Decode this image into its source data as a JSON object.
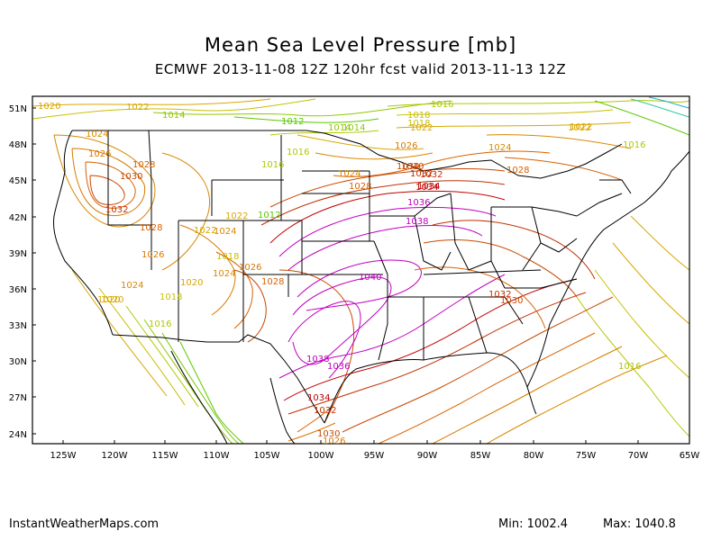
{
  "title": "Mean Sea Level Pressure [mb]",
  "subtitle": "ECMWF 2013-11-08 12Z 120hr fcst valid 2013-11-13 12Z",
  "lat_labels": [
    "51N",
    "48N",
    "45N",
    "42N",
    "39N",
    "36N",
    "33N",
    "30N",
    "27N",
    "24N"
  ],
  "lon_labels": [
    "125W",
    "120W",
    "115W",
    "110W",
    "105W",
    "100W",
    "95W",
    "90W",
    "85W",
    "80W",
    "75W",
    "70W",
    "65W"
  ],
  "footer": {
    "site": "InstantWeatherMaps.com",
    "min": "Min: 1002.4",
    "max": "Max: 1040.8"
  },
  "contour_labels": [
    {
      "text": "1020",
      "color": "#d8a800"
    },
    {
      "text": "1022",
      "color": "#d8a800"
    },
    {
      "text": "1014",
      "color": "#90c800"
    },
    {
      "text": "1012",
      "color": "#58c800"
    },
    {
      "text": "1014",
      "color": "#90c800"
    },
    {
      "text": "1018",
      "color": "#c8c000"
    },
    {
      "text": "1018",
      "color": "#c8c000"
    },
    {
      "text": "1022",
      "color": "#d8a800"
    },
    {
      "text": "1016",
      "color": "#b0c800"
    },
    {
      "text": "1016",
      "color": "#b0c800"
    },
    {
      "text": "1022",
      "color": "#d8a800"
    },
    {
      "text": "1024",
      "color": "#d88800"
    },
    {
      "text": "1026",
      "color": "#d87800"
    },
    {
      "text": "1028",
      "color": "#d86000"
    },
    {
      "text": "1030",
      "color": "#c84800"
    },
    {
      "text": "1032",
      "color": "#c03000"
    },
    {
      "text": "1028",
      "color": "#d86000"
    },
    {
      "text": "1026",
      "color": "#d87800"
    },
    {
      "text": "1024",
      "color": "#d88800"
    },
    {
      "text": "1020",
      "color": "#d8a800"
    },
    {
      "text": "1018",
      "color": "#c8c000"
    },
    {
      "text": "1016",
      "color": "#b0c800"
    },
    {
      "text": "1020",
      "color": "#d8a800"
    },
    {
      "text": "1018",
      "color": "#c8c000"
    },
    {
      "text": "1022",
      "color": "#d8a800"
    },
    {
      "text": "1024",
      "color": "#d88800"
    },
    {
      "text": "1024",
      "color": "#d88800"
    },
    {
      "text": "1026",
      "color": "#d87800"
    },
    {
      "text": "1028",
      "color": "#d86000"
    },
    {
      "text": "1022",
      "color": "#d8a800"
    },
    {
      "text": "1016",
      "color": "#b0c800"
    },
    {
      "text": "1014",
      "color": "#90c800"
    },
    {
      "text": "1012",
      "color": "#58c800"
    },
    {
      "text": "1030",
      "color": "#c84800"
    },
    {
      "text": "1034",
      "color": "#c00000"
    },
    {
      "text": "1032",
      "color": "#c03000"
    },
    {
      "text": "1024",
      "color": "#d88800"
    },
    {
      "text": "1028",
      "color": "#d86000"
    },
    {
      "text": "1026",
      "color": "#d87800"
    },
    {
      "text": "1030",
      "color": "#c84800"
    },
    {
      "text": "1032",
      "color": "#c03000"
    },
    {
      "text": "1034",
      "color": "#c00000"
    },
    {
      "text": "1036",
      "color": "#c000c0"
    },
    {
      "text": "1038",
      "color": "#c000c0"
    },
    {
      "text": "1024",
      "color": "#d88800"
    },
    {
      "text": "1028",
      "color": "#d86000"
    },
    {
      "text": "1022",
      "color": "#d8a800"
    },
    {
      "text": "1016",
      "color": "#b0c800"
    },
    {
      "text": "1040",
      "color": "#c000c0"
    },
    {
      "text": "1038",
      "color": "#c000c0"
    },
    {
      "text": "1036",
      "color": "#c000c0"
    },
    {
      "text": "1034",
      "color": "#c00000"
    },
    {
      "text": "1032",
      "color": "#c03000"
    },
    {
      "text": "1030",
      "color": "#c84800"
    },
    {
      "text": "1026",
      "color": "#d87800"
    },
    {
      "text": "1032",
      "color": "#c03000"
    },
    {
      "text": "1030",
      "color": "#c84800"
    },
    {
      "text": "1016",
      "color": "#b0c800"
    },
    {
      "text": "1020",
      "color": "#d8a800"
    }
  ]
}
